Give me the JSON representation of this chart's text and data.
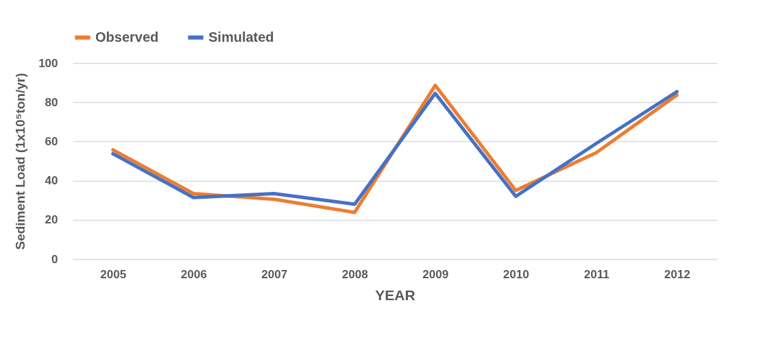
{
  "chart_data": {
    "type": "line",
    "xlabel": "YEAR",
    "ylabel": "Sediment Load (1x10⁵ton/yr)",
    "categories": [
      "2005",
      "2006",
      "2007",
      "2008",
      "2009",
      "2010",
      "2011",
      "2012"
    ],
    "series": [
      {
        "name": "Observed",
        "color": "#ed7d31",
        "values": [
          55.7,
          33.4,
          30.5,
          23.8,
          88.6,
          35,
          54.3,
          83.7
        ]
      },
      {
        "name": "Simulated",
        "color": "#4472c4",
        "values": [
          53.7,
          31.4,
          33.4,
          28,
          84.5,
          32,
          59,
          85.4
        ]
      }
    ],
    "ylim": [
      0,
      100
    ],
    "yticks": [
      0,
      20,
      40,
      60,
      80,
      100
    ],
    "grid": "y",
    "legend": "top",
    "marker": "none",
    "line_style": "solid"
  }
}
